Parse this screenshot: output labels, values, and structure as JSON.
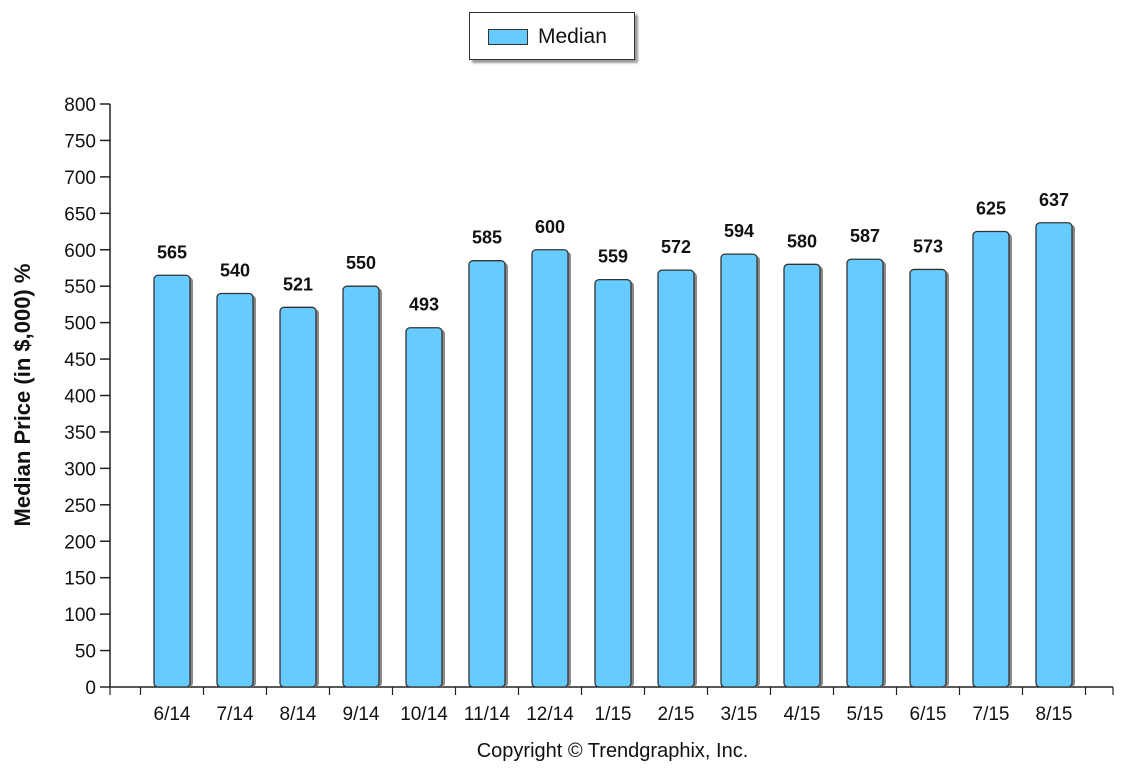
{
  "chart_data": {
    "type": "bar",
    "categories": [
      "6/14",
      "7/14",
      "8/14",
      "9/14",
      "10/14",
      "11/14",
      "12/14",
      "1/15",
      "2/15",
      "3/15",
      "4/15",
      "5/15",
      "6/15",
      "7/15",
      "8/15"
    ],
    "series": [
      {
        "name": "Median",
        "values": [
          565,
          540,
          521,
          550,
          493,
          585,
          600,
          559,
          572,
          594,
          580,
          587,
          573,
          625,
          637
        ]
      }
    ],
    "ylabel": "Median Price (in $,000) %",
    "xlabel": "",
    "ylim": [
      0,
      800
    ],
    "yticks": [
      0,
      50,
      100,
      150,
      200,
      250,
      300,
      350,
      400,
      450,
      500,
      550,
      600,
      650,
      700,
      750,
      800
    ],
    "legend_position": "top-center",
    "grid": false,
    "bar_color": "#66ccff",
    "copyright": "Copyright © Trendgraphix, Inc."
  }
}
